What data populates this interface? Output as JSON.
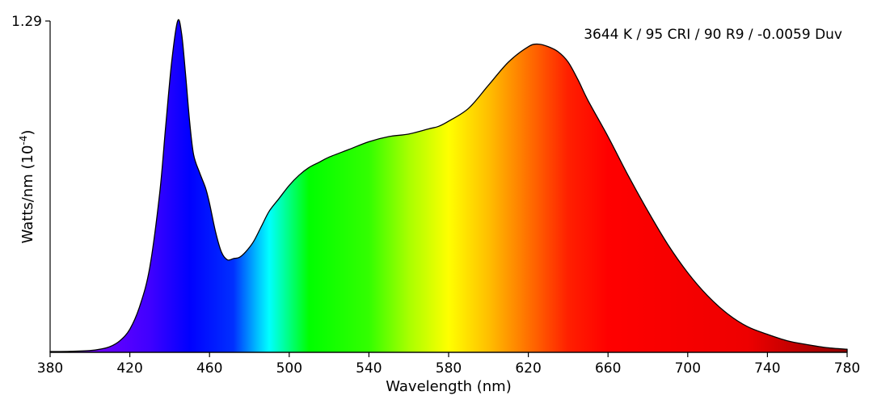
{
  "chart_data": {
    "type": "area",
    "annotation": "3644 K / 95 CRI / 90 R9 / -0.0059 Duv",
    "xlabel": "Wavelength (nm)",
    "ylabel": "Watts/nm (10",
    "ylabel_exponent": "-4",
    "ylabel_suffix": ")",
    "xlim": [
      380,
      780
    ],
    "ylim": [
      0,
      1.29
    ],
    "xticks": [
      380,
      420,
      460,
      500,
      540,
      580,
      620,
      660,
      700,
      740,
      780
    ],
    "xtick_labels": [
      "380",
      "420",
      "460",
      "500",
      "540",
      "580",
      "620",
      "660",
      "700",
      "740",
      "780"
    ],
    "ytick_labels": [
      "1.29"
    ],
    "grid": false,
    "fill": "visible-spectrum gradient",
    "x": [
      380,
      390,
      400,
      405,
      410,
      415,
      420,
      425,
      430,
      435,
      438,
      441,
      444,
      446,
      448,
      450,
      452,
      455,
      458,
      460,
      463,
      466,
      469,
      472,
      475,
      478,
      482,
      486,
      490,
      495,
      500,
      505,
      510,
      515,
      520,
      530,
      540,
      550,
      560,
      570,
      575,
      580,
      590,
      600,
      610,
      620,
      625,
      630,
      635,
      640,
      645,
      650,
      660,
      670,
      680,
      690,
      700,
      710,
      720,
      730,
      740,
      750,
      760,
      770,
      780
    ],
    "y": [
      0.003,
      0.004,
      0.007,
      0.012,
      0.022,
      0.045,
      0.09,
      0.18,
      0.33,
      0.62,
      0.88,
      1.13,
      1.29,
      1.24,
      1.08,
      0.9,
      0.77,
      0.7,
      0.64,
      0.58,
      0.47,
      0.39,
      0.36,
      0.365,
      0.37,
      0.39,
      0.43,
      0.49,
      0.55,
      0.6,
      0.65,
      0.69,
      0.72,
      0.74,
      0.76,
      0.79,
      0.82,
      0.84,
      0.85,
      0.87,
      0.88,
      0.9,
      0.95,
      1.04,
      1.13,
      1.19,
      1.2,
      1.19,
      1.17,
      1.13,
      1.06,
      0.98,
      0.84,
      0.69,
      0.55,
      0.42,
      0.31,
      0.22,
      0.15,
      0.1,
      0.07,
      0.045,
      0.03,
      0.018,
      0.012
    ]
  }
}
